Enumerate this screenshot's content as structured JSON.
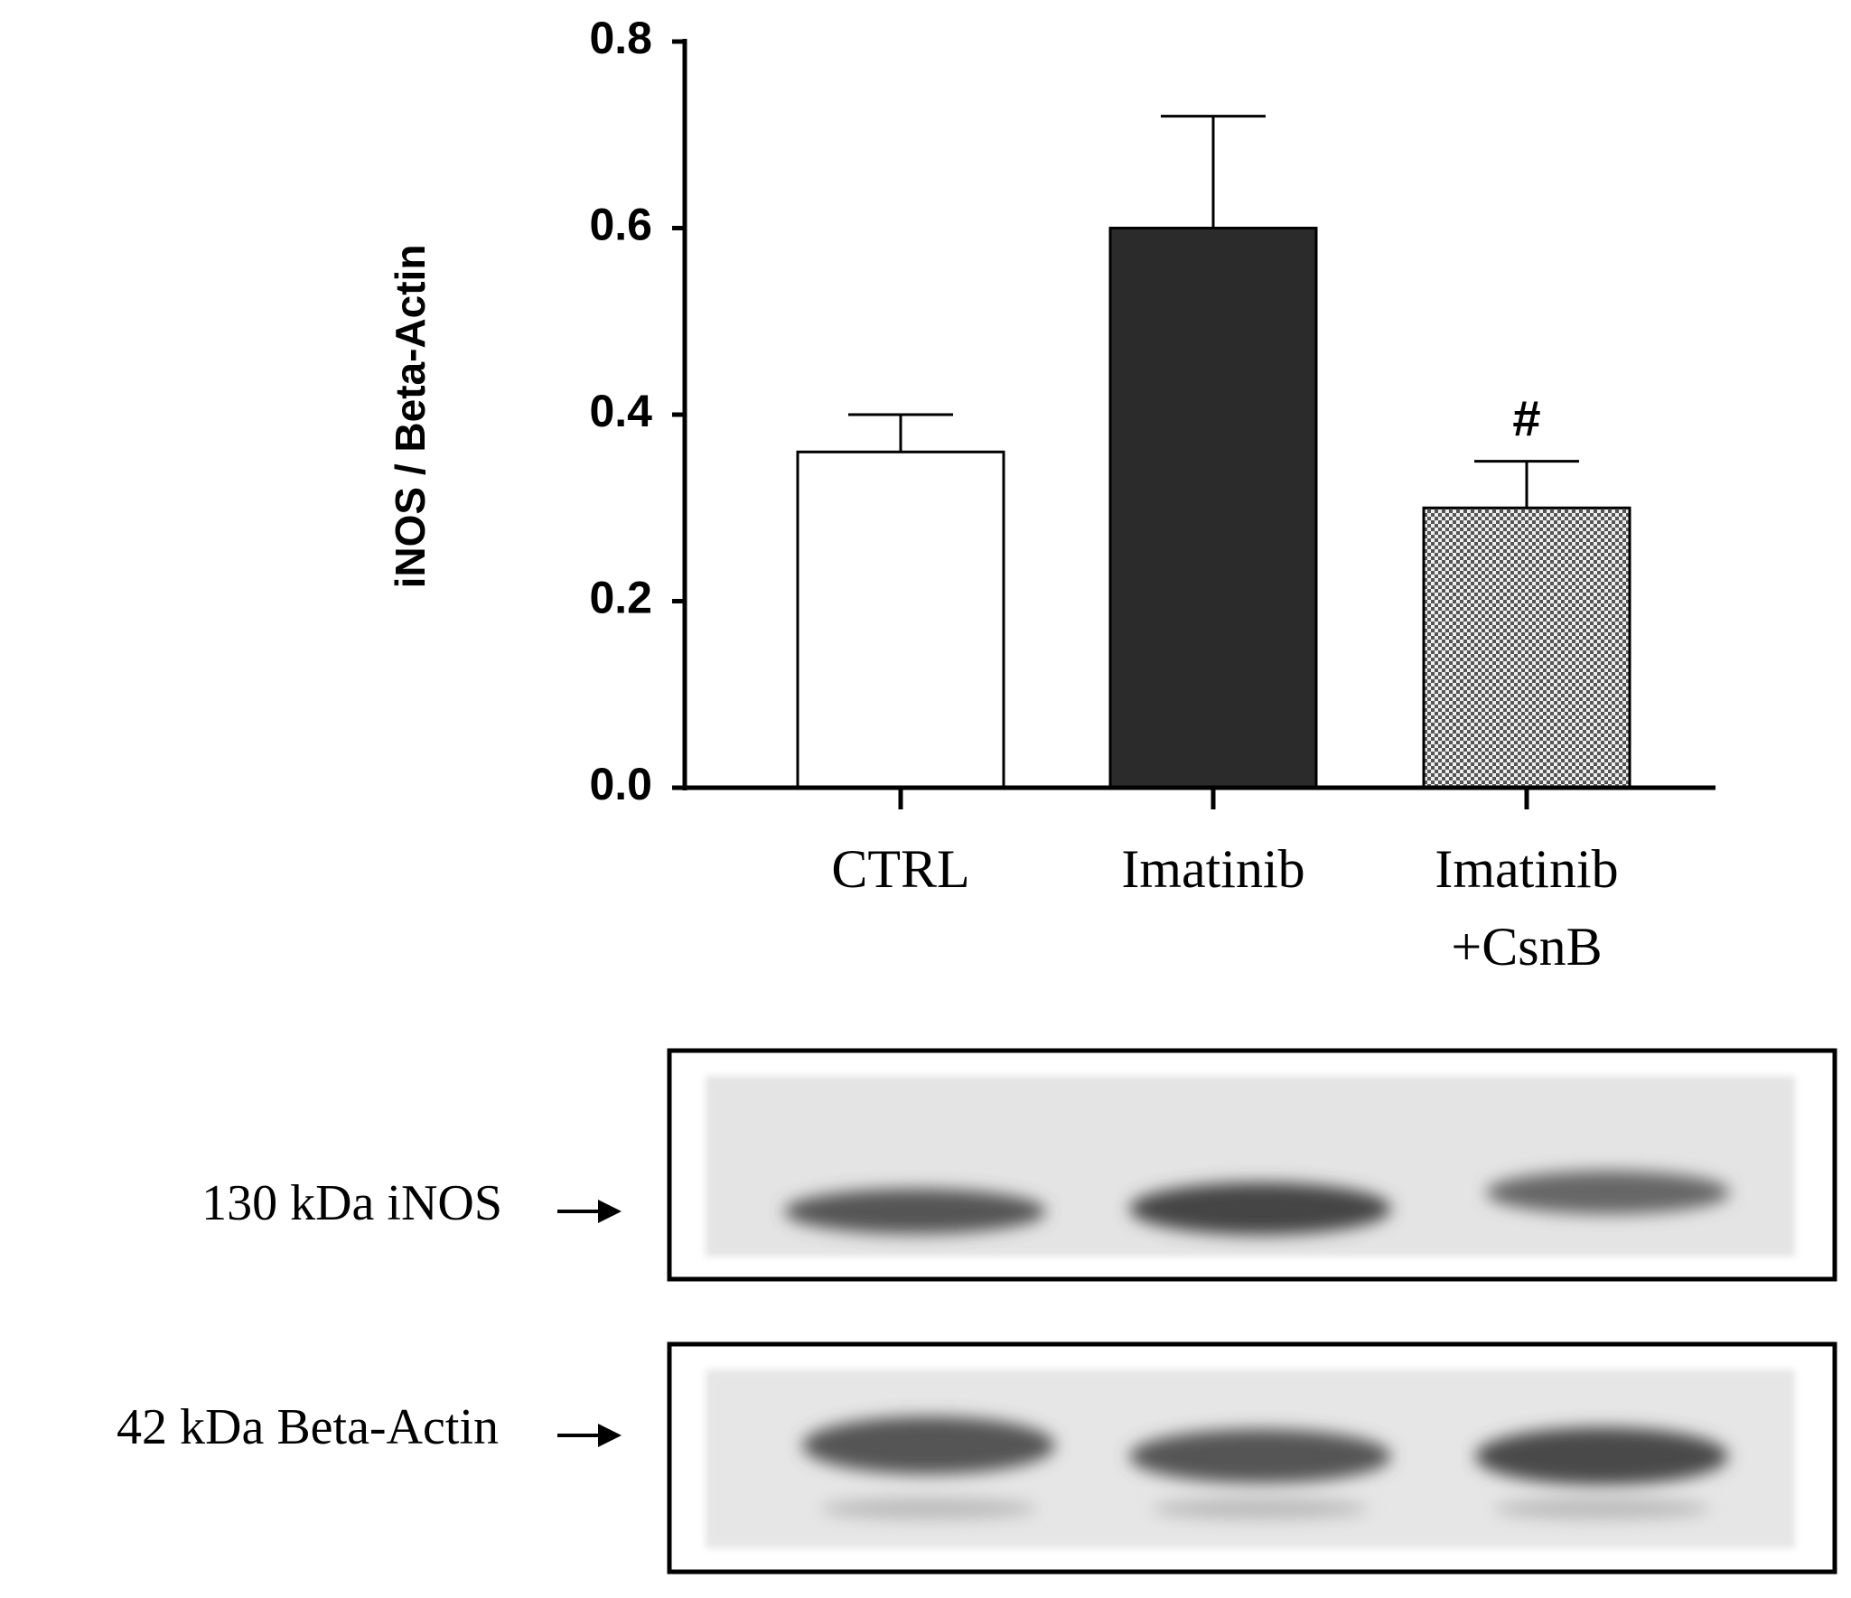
{
  "chart_data": {
    "type": "bar",
    "y_label": "iNOS / Beta-Actin",
    "categories": [
      "CTRL",
      "Imatinib",
      "Imatinib\n+CsnB"
    ],
    "values": [
      0.36,
      0.6,
      0.3
    ],
    "errors": [
      0.04,
      0.12,
      0.05
    ],
    "colors": [
      "#ffffff",
      "#2b2b2b",
      "#7a7a7a"
    ],
    "hatch": [
      false,
      false,
      true
    ],
    "annotations": [
      {
        "text": "#",
        "x": "Imatinib\n+CsnB"
      }
    ],
    "ylim": [
      0,
      0.8
    ],
    "yticks": [
      {
        "value": 0,
        "label": "0.0"
      },
      0.2,
      0.4,
      0.6,
      0.8
    ]
  },
  "blot": {
    "bands": [
      {
        "label": "130 kDa iNOS"
      },
      {
        "label": "42 kDa Beta-Actin"
      }
    ]
  }
}
